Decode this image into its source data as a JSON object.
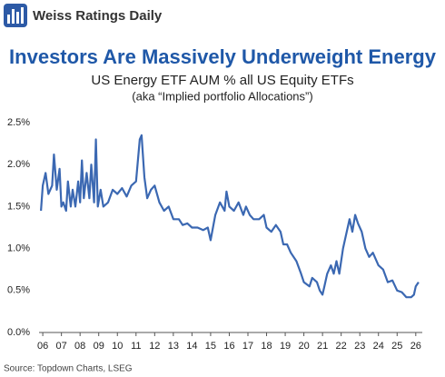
{
  "brand": "Weiss Ratings Daily",
  "chart_data": {
    "type": "line",
    "title": "Investors Are Massively Underweight Energy",
    "subtitle": "US Energy ETF AUM % all US Equity ETFs",
    "note": "(aka “Implied portfolio Allocations”)",
    "source": "Source: Topdown Charts, LSEG",
    "x": [
      2005.9,
      2006.0,
      2006.15,
      2006.3,
      2006.5,
      2006.6,
      2006.75,
      2006.9,
      2007.0,
      2007.1,
      2007.25,
      2007.35,
      2007.5,
      2007.6,
      2007.75,
      2007.9,
      2008.0,
      2008.1,
      2008.2,
      2008.35,
      2008.5,
      2008.6,
      2008.75,
      2008.85,
      2008.95,
      2009.1,
      2009.25,
      2009.5,
      2009.75,
      2010.0,
      2010.25,
      2010.5,
      2010.75,
      2011.0,
      2011.2,
      2011.3,
      2011.45,
      2011.6,
      2011.8,
      2012.0,
      2012.25,
      2012.5,
      2012.75,
      2013.0,
      2013.3,
      2013.5,
      2013.75,
      2014.0,
      2014.3,
      2014.6,
      2014.85,
      2015.0,
      2015.25,
      2015.5,
      2015.75,
      2015.85,
      2016.0,
      2016.25,
      2016.5,
      2016.75,
      2016.9,
      2017.1,
      2017.3,
      2017.6,
      2017.85,
      2018.0,
      2018.25,
      2018.5,
      2018.75,
      2018.9,
      2019.1,
      2019.3,
      2019.6,
      2019.85,
      2020.0,
      2020.3,
      2020.45,
      2020.7,
      2020.85,
      2021.0,
      2021.1,
      2021.25,
      2021.45,
      2021.6,
      2021.75,
      2021.9,
      2022.1,
      2022.3,
      2022.45,
      2022.6,
      2022.75,
      2022.9,
      2023.1,
      2023.3,
      2023.5,
      2023.7,
      2024.0,
      2024.25,
      2024.5,
      2024.75,
      2025.0,
      2025.25,
      2025.5,
      2025.75,
      2025.9,
      2026.0,
      2026.15
    ],
    "series": [
      {
        "name": "US Energy ETF AUM %",
        "color": "#3b68b2",
        "values": [
          1.45,
          1.75,
          1.9,
          1.65,
          1.75,
          2.12,
          1.7,
          1.95,
          1.5,
          1.55,
          1.45,
          1.8,
          1.5,
          1.7,
          1.5,
          1.8,
          1.55,
          2.05,
          1.6,
          1.9,
          1.6,
          2.0,
          1.55,
          2.3,
          1.5,
          1.7,
          1.5,
          1.55,
          1.7,
          1.65,
          1.72,
          1.62,
          1.75,
          1.8,
          2.3,
          2.35,
          1.85,
          1.6,
          1.7,
          1.75,
          1.55,
          1.45,
          1.5,
          1.35,
          1.35,
          1.28,
          1.3,
          1.25,
          1.25,
          1.22,
          1.25,
          1.1,
          1.4,
          1.55,
          1.45,
          1.68,
          1.5,
          1.45,
          1.55,
          1.4,
          1.5,
          1.4,
          1.35,
          1.35,
          1.4,
          1.25,
          1.2,
          1.28,
          1.2,
          1.05,
          1.05,
          0.95,
          0.85,
          0.7,
          0.6,
          0.55,
          0.65,
          0.6,
          0.5,
          0.45,
          0.55,
          0.7,
          0.8,
          0.7,
          0.85,
          0.7,
          1.0,
          1.2,
          1.35,
          1.2,
          1.4,
          1.3,
          1.2,
          1.0,
          0.9,
          0.95,
          0.8,
          0.75,
          0.6,
          0.62,
          0.5,
          0.48,
          0.42,
          0.42,
          0.45,
          0.55,
          0.6
        ]
      }
    ],
    "xlim": [
      2005.8,
      2026.35
    ],
    "xticks": [
      {
        "value": 2006,
        "label": "06"
      },
      {
        "value": 2007,
        "label": "07"
      },
      {
        "value": 2008,
        "label": "08"
      },
      {
        "value": 2009,
        "label": "09"
      },
      {
        "value": 2010,
        "label": "10"
      },
      {
        "value": 2011,
        "label": "11"
      },
      {
        "value": 2012,
        "label": "12"
      },
      {
        "value": 2013,
        "label": "13"
      },
      {
        "value": 2014,
        "label": "14"
      },
      {
        "value": 2015,
        "label": "15"
      },
      {
        "value": 2016,
        "label": "16"
      },
      {
        "value": 2017,
        "label": "17"
      },
      {
        "value": 2018,
        "label": "18"
      },
      {
        "value": 2019,
        "label": "19"
      },
      {
        "value": 2020,
        "label": "20"
      },
      {
        "value": 2021,
        "label": "21"
      },
      {
        "value": 2022,
        "label": "22"
      },
      {
        "value": 2023,
        "label": "23"
      },
      {
        "value": 2024,
        "label": "24"
      },
      {
        "value": 2025,
        "label": "25"
      },
      {
        "value": 2026,
        "label": "26"
      }
    ],
    "ylim": [
      0,
      2.5
    ],
    "yticks": [
      {
        "value": 0,
        "label": "0.0%"
      },
      {
        "value": 0.5,
        "label": "0.5%"
      },
      {
        "value": 1,
        "label": "1.0%"
      },
      {
        "value": 1.5,
        "label": "1.5%"
      },
      {
        "value": 2,
        "label": "2.0%"
      },
      {
        "value": 2.5,
        "label": "2.5%"
      }
    ],
    "grid": false
  }
}
